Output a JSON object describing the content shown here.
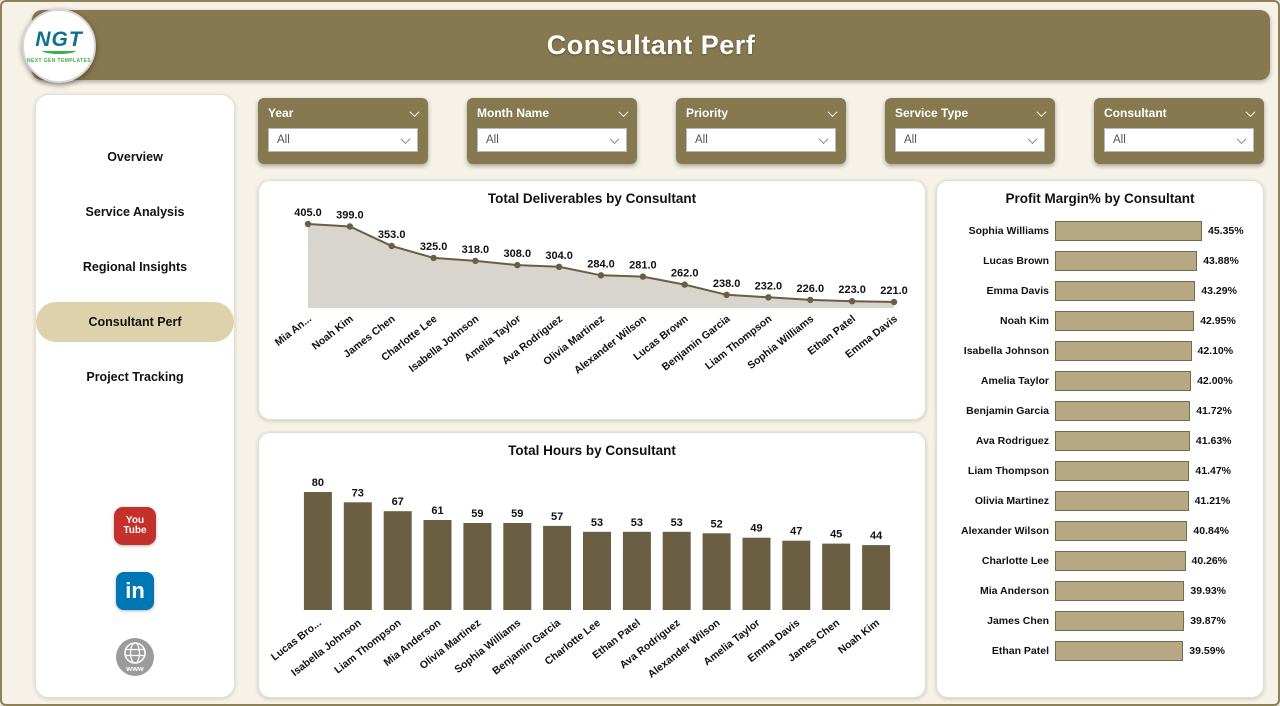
{
  "app": {
    "title": "Consultant Perf",
    "logo": {
      "text": "NGT",
      "subtext": "NEXT GEN TEMPLATES"
    }
  },
  "colors": {
    "khaki": "#87794f",
    "bar": "#6a5e43",
    "line": "#6a5e43",
    "area_fill": "#d8d5cf",
    "hbar_fill": "#b7a884",
    "hbar_border": "#776a49",
    "active_nav_bg": "#ddd2ac",
    "page_bg": "#f7f2e7",
    "youtube_red": "#c4302b",
    "linkedin_blue": "#0077b5",
    "globe_gray": "#9b9b9b"
  },
  "sidebar": {
    "items": [
      {
        "label": "Overview",
        "active": false
      },
      {
        "label": "Service Analysis",
        "active": false
      },
      {
        "label": "Regional Insights",
        "active": false
      },
      {
        "label": "Consultant Perf",
        "active": true
      },
      {
        "label": "Project Tracking",
        "active": false
      }
    ],
    "social": {
      "youtube": {
        "line1": "You",
        "line2": "Tube"
      },
      "linkedin": {
        "text": "in"
      },
      "website": {
        "text": "www"
      }
    }
  },
  "filters": [
    {
      "label": "Year",
      "value": "All"
    },
    {
      "label": "Month Name",
      "value": "All"
    },
    {
      "label": "Priority",
      "value": "All"
    },
    {
      "label": "Service Type",
      "value": "All"
    },
    {
      "label": "Consultant",
      "value": "All"
    }
  ],
  "chart_data": [
    {
      "type": "area",
      "title": "Total Deliverables by Consultant",
      "categories": [
        "Mia An...",
        "Noah Kim",
        "James Chen",
        "Charlotte Lee",
        "Isabella Johnson",
        "Amelia Taylor",
        "Ava Rodriguez",
        "Olivia Martinez",
        "Alexander Wilson",
        "Lucas Brown",
        "Benjamin Garcia",
        "Liam Thompson",
        "Sophia Williams",
        "Ethan Patel",
        "Emma Davis"
      ],
      "values": [
        405.0,
        399.0,
        353.0,
        325.0,
        318.0,
        308.0,
        304.0,
        284.0,
        281.0,
        262.0,
        238.0,
        232.0,
        226.0,
        223.0,
        221.0
      ],
      "ylim": [
        200,
        420
      ],
      "grid": false,
      "legend": false,
      "data_labels_decimals": 1
    },
    {
      "type": "bar",
      "title": "Total Hours by Consultant",
      "categories": [
        "Lucas Bro...",
        "Isabella Johnson",
        "Liam Thompson",
        "Mia Anderson",
        "Olivia Martinez",
        "Sophia Williams",
        "Benjamin Garcia",
        "Charlotte Lee",
        "Ethan Patel",
        "Ava Rodriguez",
        "Alexander Wilson",
        "Amelia Taylor",
        "Emma Davis",
        "James Chen",
        "Noah Kim"
      ],
      "values": [
        80,
        73,
        67,
        61,
        59,
        59,
        57,
        53,
        53,
        53,
        52,
        49,
        47,
        45,
        44
      ],
      "ylim": [
        0,
        80
      ],
      "grid": false,
      "legend": false
    },
    {
      "type": "hbar",
      "title": "Profit Margin% by Consultant",
      "categories": [
        "Sophia Williams",
        "Lucas Brown",
        "Emma Davis",
        "Noah Kim",
        "Isabella Johnson",
        "Amelia Taylor",
        "Benjamin Garcia",
        "Ava Rodriguez",
        "Liam Thompson",
        "Olivia Martinez",
        "Alexander Wilson",
        "Charlotte Lee",
        "Mia Anderson",
        "James Chen",
        "Ethan Patel"
      ],
      "values": [
        45.35,
        43.88,
        43.29,
        42.95,
        42.1,
        42.0,
        41.72,
        41.63,
        41.47,
        41.21,
        40.84,
        40.26,
        39.93,
        39.87,
        39.59
      ],
      "labels": [
        "45.35%",
        "43.88%",
        "43.29%",
        "42.95%",
        "42.10%",
        "42.00%",
        "41.72%",
        "41.63%",
        "41.47%",
        "41.21%",
        "40.84%",
        "40.26%",
        "39.93%",
        "39.87%",
        "39.59%"
      ],
      "xlim": [
        0,
        45.35
      ],
      "grid": false,
      "legend": false
    }
  ]
}
